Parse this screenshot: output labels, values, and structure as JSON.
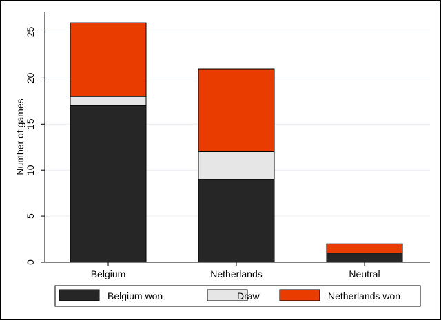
{
  "chart_data": {
    "type": "bar",
    "stacked": true,
    "categories": [
      "Belgium",
      "Netherlands",
      "Neutral"
    ],
    "series": [
      {
        "name": "Belgium won",
        "values": [
          17,
          9,
          1
        ],
        "color": "#262626"
      },
      {
        "name": "Draw",
        "values": [
          1,
          3,
          0
        ],
        "color": "#e6e6e6"
      },
      {
        "name": "Netherlands won",
        "values": [
          8,
          9,
          1
        ],
        "color": "#e83c00"
      }
    ],
    "ylabel": "Number of games",
    "ylim": [
      0,
      27
    ],
    "yticks": [
      0,
      5,
      10,
      15,
      20,
      25
    ],
    "grid": true,
    "legend_position": "bottom"
  }
}
